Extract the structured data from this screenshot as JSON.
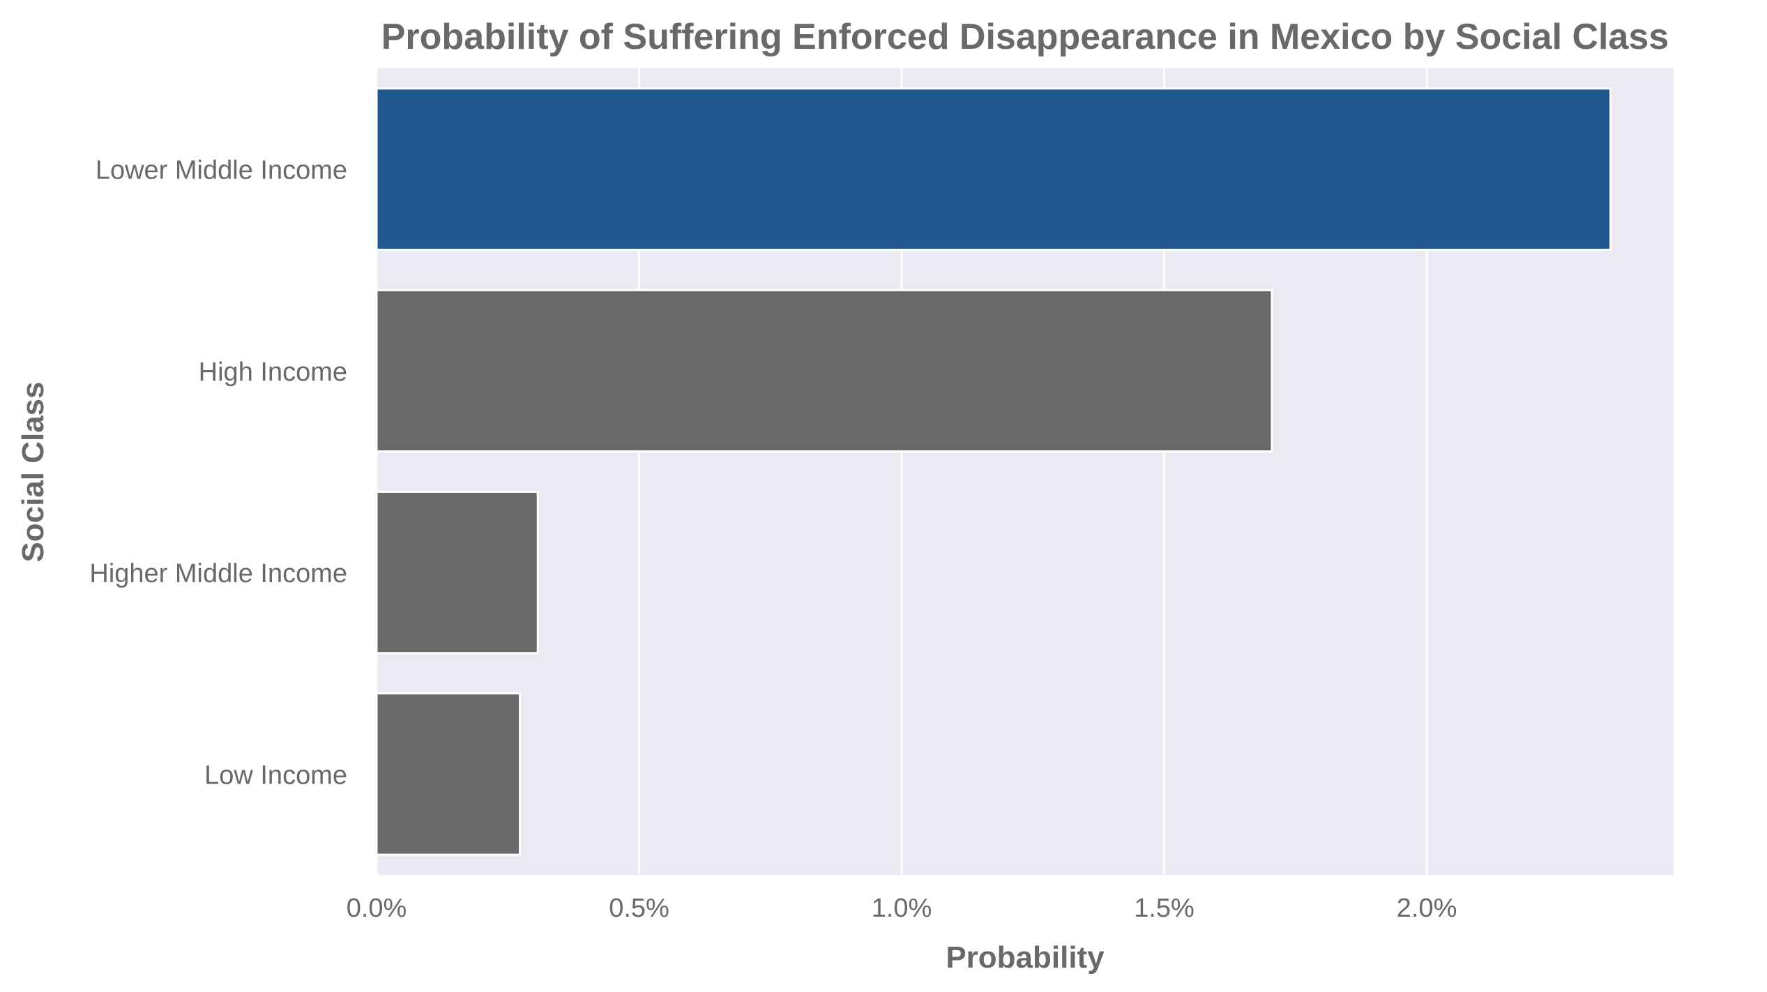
{
  "chart_data": {
    "type": "bar",
    "orientation": "horizontal",
    "title": "Probability of Suffering Enforced Disappearance in Mexico by Social Class",
    "xlabel": "Probability",
    "ylabel": "Social Class",
    "categories": [
      "Lower Middle Income",
      "High Income",
      "Higher Middle Income",
      "Low Income"
    ],
    "values": [
      2.35,
      1.705,
      0.307,
      0.273
    ],
    "value_unit": "%",
    "xlim": [
      0,
      2.47
    ],
    "x_ticks": [
      0.0,
      0.5,
      1.0,
      1.5,
      2.0
    ],
    "x_tick_labels": [
      "0.0%",
      "0.5%",
      "1.0%",
      "1.5%",
      "2.0%"
    ],
    "grid": true,
    "legend": "none",
    "colors": {
      "highlight": "#20578c",
      "default": "#696969",
      "plot_background": "#eaeaf2",
      "grid": "#ffffff",
      "text": "#696969"
    }
  }
}
